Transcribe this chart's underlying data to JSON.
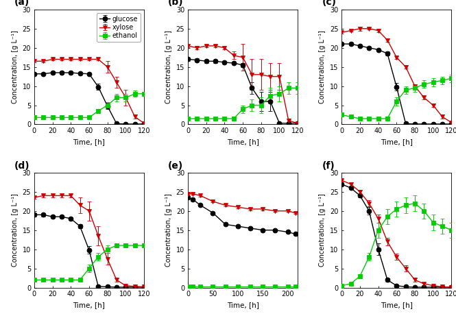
{
  "panels": [
    "(a)",
    "(b)",
    "(c)",
    "(d)",
    "(e)",
    "(f)"
  ],
  "series_colors": {
    "glucose": "#000000",
    "xylose": "#cc0000",
    "ethanol": "#00cc00"
  },
  "series_markers": {
    "glucose": "o",
    "xylose": "v",
    "ethanol": "s"
  },
  "series_labels": {
    "glucose": "glucose",
    "xylose": "xylose",
    "ethanol": "ethanol"
  },
  "panel_a": {
    "glucose_t": [
      0,
      10,
      20,
      30,
      40,
      50,
      60,
      70,
      80,
      90,
      100,
      110,
      120
    ],
    "glucose_v": [
      13.2,
      13.2,
      13.5,
      13.5,
      13.5,
      13.3,
      13.2,
      9.8,
      4.8,
      0.2,
      0.1,
      0.1,
      0.1
    ],
    "glucose_e": [
      0.3,
      0.3,
      0.3,
      0.3,
      0.3,
      0.3,
      0.3,
      0.8,
      0.8,
      0.1,
      0.1,
      0.1,
      0.1
    ],
    "xylose_t": [
      0,
      10,
      20,
      30,
      40,
      50,
      60,
      70,
      80,
      90,
      100,
      110,
      120
    ],
    "xylose_v": [
      16.5,
      16.5,
      17.0,
      17.0,
      17.0,
      17.0,
      17.0,
      17.0,
      15.0,
      11.0,
      7.0,
      2.0,
      0.3
    ],
    "xylose_e": [
      0.3,
      0.3,
      0.3,
      0.3,
      0.3,
      0.3,
      0.3,
      0.3,
      1.5,
      1.5,
      2.0,
      0.5,
      0.2
    ],
    "ethanol_t": [
      0,
      10,
      20,
      30,
      40,
      50,
      60,
      70,
      80,
      90,
      100,
      110,
      120
    ],
    "ethanol_v": [
      1.8,
      1.8,
      1.8,
      1.8,
      1.8,
      1.8,
      1.8,
      3.5,
      5.0,
      7.0,
      7.0,
      8.0,
      8.0
    ],
    "ethanol_e": [
      0.1,
      0.1,
      0.1,
      0.1,
      0.1,
      0.1,
      0.1,
      0.5,
      0.8,
      1.0,
      1.0,
      0.8,
      0.5
    ],
    "xlim": [
      0,
      120
    ],
    "xticks": [
      0,
      20,
      40,
      60,
      80,
      100,
      120
    ],
    "ylim": [
      0,
      30
    ]
  },
  "panel_b": {
    "glucose_t": [
      0,
      10,
      20,
      30,
      40,
      50,
      60,
      70,
      80,
      90,
      100,
      110,
      120
    ],
    "glucose_v": [
      17.0,
      16.8,
      16.5,
      16.5,
      16.2,
      16.0,
      15.5,
      9.5,
      6.0,
      6.0,
      0.3,
      0.3,
      0.3
    ],
    "glucose_e": [
      0.4,
      0.4,
      0.4,
      0.4,
      0.4,
      0.4,
      0.5,
      1.5,
      2.5,
      2.5,
      0.2,
      0.2,
      0.2
    ],
    "xylose_t": [
      0,
      10,
      20,
      30,
      40,
      50,
      60,
      70,
      80,
      90,
      100,
      110,
      120
    ],
    "xylose_v": [
      20.5,
      20.0,
      20.5,
      20.5,
      20.0,
      18.0,
      17.5,
      13.0,
      13.0,
      12.5,
      12.5,
      1.0,
      0.3
    ],
    "xylose_e": [
      0.4,
      0.4,
      0.4,
      0.4,
      0.4,
      1.0,
      3.5,
      4.0,
      4.0,
      3.5,
      3.5,
      0.5,
      0.2
    ],
    "ethanol_t": [
      0,
      10,
      20,
      30,
      40,
      50,
      60,
      70,
      80,
      90,
      100,
      110,
      120
    ],
    "ethanol_v": [
      1.5,
      1.5,
      1.5,
      1.5,
      1.5,
      1.5,
      4.0,
      5.0,
      5.0,
      7.5,
      8.0,
      9.5,
      9.5
    ],
    "ethanol_e": [
      0.1,
      0.1,
      0.1,
      0.1,
      0.1,
      0.5,
      1.0,
      1.5,
      2.0,
      2.0,
      2.0,
      1.5,
      1.5
    ],
    "xlim": [
      0,
      120
    ],
    "xticks": [
      0,
      20,
      40,
      60,
      80,
      100,
      120
    ],
    "ylim": [
      0,
      30
    ]
  },
  "panel_c": {
    "glucose_t": [
      0,
      10,
      20,
      30,
      40,
      50,
      60,
      70,
      80,
      90,
      100,
      110,
      120
    ],
    "glucose_v": [
      21.0,
      21.0,
      20.5,
      20.0,
      19.5,
      18.5,
      9.8,
      0.2,
      0.1,
      0.1,
      0.1,
      0.1,
      0.1
    ],
    "glucose_e": [
      0.3,
      0.3,
      0.3,
      0.3,
      0.3,
      0.5,
      1.0,
      0.1,
      0.1,
      0.1,
      0.1,
      0.1,
      0.1
    ],
    "xylose_t": [
      0,
      10,
      20,
      30,
      40,
      50,
      60,
      70,
      80,
      90,
      100,
      110,
      120
    ],
    "xylose_v": [
      24.0,
      24.5,
      25.0,
      25.0,
      24.5,
      22.0,
      17.5,
      15.0,
      10.0,
      7.0,
      5.0,
      2.0,
      0.5
    ],
    "xylose_e": [
      0.3,
      0.3,
      0.5,
      0.3,
      0.5,
      0.5,
      0.5,
      0.5,
      0.5,
      0.5,
      0.5,
      0.5,
      0.2
    ],
    "ethanol_t": [
      0,
      10,
      20,
      30,
      40,
      50,
      60,
      70,
      80,
      90,
      100,
      110,
      120
    ],
    "ethanol_v": [
      2.5,
      2.0,
      1.5,
      1.5,
      1.5,
      1.5,
      6.0,
      9.0,
      9.5,
      10.5,
      11.0,
      11.5,
      12.0
    ],
    "ethanol_e": [
      0.2,
      0.2,
      0.2,
      0.2,
      0.2,
      0.5,
      1.0,
      1.0,
      1.0,
      1.0,
      1.0,
      1.0,
      1.0
    ],
    "xlim": [
      0,
      120
    ],
    "xticks": [
      0,
      20,
      40,
      60,
      80,
      100,
      120
    ],
    "ylim": [
      0,
      30
    ]
  },
  "panel_d": {
    "glucose_t": [
      0,
      10,
      20,
      30,
      40,
      50,
      60,
      70,
      80,
      90,
      100,
      110,
      120
    ],
    "glucose_v": [
      19.0,
      19.0,
      18.5,
      18.5,
      18.0,
      16.0,
      9.8,
      0.3,
      0.2,
      0.1,
      0.1,
      0.1,
      0.1
    ],
    "glucose_e": [
      0.4,
      0.4,
      0.4,
      0.4,
      0.4,
      0.5,
      1.0,
      0.2,
      0.1,
      0.1,
      0.1,
      0.1,
      0.1
    ],
    "xylose_t": [
      0,
      10,
      20,
      30,
      40,
      50,
      60,
      70,
      80,
      90,
      100,
      110,
      120
    ],
    "xylose_v": [
      23.5,
      24.0,
      24.0,
      24.0,
      24.0,
      21.5,
      20.0,
      13.5,
      7.5,
      2.0,
      0.5,
      0.3,
      0.2
    ],
    "xylose_e": [
      0.4,
      0.4,
      0.4,
      0.4,
      0.4,
      2.0,
      2.5,
      2.5,
      1.5,
      0.5,
      0.2,
      0.1,
      0.1
    ],
    "ethanol_t": [
      0,
      10,
      20,
      30,
      40,
      50,
      60,
      70,
      80,
      90,
      100,
      110,
      120
    ],
    "ethanol_v": [
      2.0,
      2.0,
      2.0,
      2.0,
      2.0,
      2.0,
      5.0,
      8.0,
      10.0,
      11.0,
      11.0,
      11.0,
      11.0
    ],
    "ethanol_e": [
      0.1,
      0.1,
      0.1,
      0.1,
      0.1,
      0.3,
      1.0,
      1.0,
      1.0,
      0.5,
      0.5,
      0.5,
      0.5
    ],
    "xlim": [
      0,
      120
    ],
    "xticks": [
      0,
      20,
      40,
      60,
      80,
      100,
      120
    ],
    "ylim": [
      0,
      30
    ]
  },
  "panel_e": {
    "glucose_t": [
      0,
      10,
      25,
      50,
      75,
      100,
      125,
      150,
      175,
      200,
      215
    ],
    "glucose_v": [
      23.5,
      23.0,
      21.5,
      19.5,
      16.5,
      16.0,
      15.5,
      15.0,
      15.0,
      14.5,
      14.0
    ],
    "glucose_e": [
      0.3,
      0.3,
      0.3,
      0.3,
      0.3,
      0.3,
      0.3,
      0.3,
      0.3,
      0.3,
      0.3
    ],
    "xylose_t": [
      0,
      10,
      25,
      50,
      75,
      100,
      125,
      150,
      175,
      200,
      215
    ],
    "xylose_v": [
      24.5,
      24.5,
      24.0,
      22.5,
      21.5,
      21.0,
      20.5,
      20.5,
      20.0,
      20.0,
      19.5
    ],
    "xylose_e": [
      0.3,
      0.3,
      0.3,
      0.3,
      0.3,
      0.3,
      0.3,
      0.3,
      0.3,
      0.3,
      0.3
    ],
    "ethanol_t": [
      0,
      10,
      25,
      50,
      75,
      100,
      125,
      150,
      175,
      200,
      215
    ],
    "ethanol_v": [
      0.2,
      0.2,
      0.2,
      0.2,
      0.2,
      0.2,
      0.2,
      0.2,
      0.2,
      0.2,
      0.2
    ],
    "ethanol_e": [
      0.05,
      0.05,
      0.05,
      0.05,
      0.05,
      0.05,
      0.05,
      0.05,
      0.05,
      0.05,
      0.05
    ],
    "xlim": [
      0,
      220
    ],
    "xticks": [
      0,
      50,
      100,
      150,
      200
    ],
    "ylim": [
      0,
      30
    ]
  },
  "panel_f": {
    "glucose_t": [
      0,
      10,
      20,
      30,
      40,
      50,
      60,
      70,
      80,
      90,
      100,
      110,
      120
    ],
    "glucose_v": [
      27.0,
      26.0,
      24.0,
      20.0,
      10.0,
      2.0,
      0.5,
      0.2,
      0.1,
      0.1,
      0.1,
      0.1,
      0.1
    ],
    "glucose_e": [
      0.4,
      0.4,
      0.5,
      1.0,
      1.5,
      0.5,
      0.2,
      0.1,
      0.1,
      0.1,
      0.1,
      0.1,
      0.1
    ],
    "xylose_t": [
      0,
      10,
      20,
      30,
      40,
      50,
      60,
      70,
      80,
      90,
      100,
      110,
      120
    ],
    "xylose_v": [
      28.0,
      27.0,
      25.0,
      22.0,
      18.0,
      12.0,
      8.0,
      5.0,
      2.0,
      1.0,
      0.5,
      0.2,
      0.1
    ],
    "xylose_e": [
      0.4,
      0.4,
      0.5,
      0.8,
      1.0,
      1.0,
      0.8,
      0.8,
      0.5,
      0.3,
      0.2,
      0.1,
      0.05
    ],
    "ethanol_t": [
      0,
      10,
      20,
      30,
      40,
      50,
      60,
      70,
      80,
      90,
      100,
      110,
      120
    ],
    "ethanol_v": [
      0.5,
      1.0,
      3.0,
      8.0,
      15.0,
      18.5,
      20.5,
      21.5,
      22.0,
      20.0,
      17.0,
      16.0,
      15.0
    ],
    "ethanol_e": [
      0.1,
      0.2,
      0.5,
      1.0,
      2.0,
      2.0,
      2.0,
      2.0,
      2.0,
      2.0,
      2.0,
      2.0,
      2.0
    ],
    "xlim": [
      0,
      120
    ],
    "xticks": [
      0,
      20,
      40,
      60,
      80,
      100,
      120
    ],
    "ylim": [
      0,
      30
    ]
  },
  "ylabel": "Concentration, [g L⁻¹]",
  "xlabel": "Time, [h]",
  "yticks": [
    0,
    5,
    10,
    15,
    20,
    25,
    30
  ],
  "markersize": 5,
  "linewidth": 1.0,
  "capsize": 2,
  "elinewidth": 0.7
}
